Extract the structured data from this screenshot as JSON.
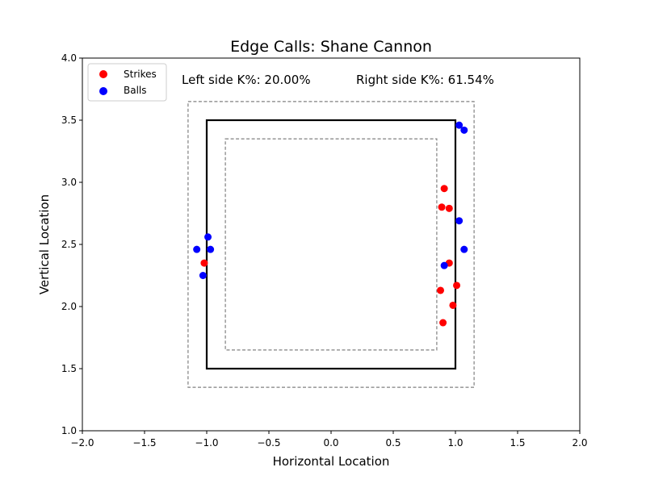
{
  "chart_data": {
    "type": "scatter",
    "title": "Edge Calls: Shane Cannon",
    "xlabel": "Horizontal Location",
    "ylabel": "Vertical Location",
    "xlim": [
      -2.0,
      2.0
    ],
    "ylim": [
      1.0,
      4.0
    ],
    "xticks": [
      "−2.0",
      "−1.5",
      "−1.0",
      "−0.5",
      "0.0",
      "0.5",
      "1.0",
      "1.5",
      "2.0"
    ],
    "yticks": [
      "1.0",
      "1.5",
      "2.0",
      "2.5",
      "3.0",
      "3.5",
      "4.0"
    ],
    "grid": false,
    "legend_position": "top-left",
    "annotations": {
      "left": "Left side K%: 20.00%",
      "right": "Right side K%: 61.54%"
    },
    "zones": {
      "strike_zone": {
        "x": [
          -1.0,
          1.0
        ],
        "y": [
          1.5,
          3.5
        ],
        "style": "solid"
      },
      "outer_edge": {
        "x": [
          -1.15,
          1.15
        ],
        "y": [
          1.35,
          3.65
        ],
        "style": "dashed"
      },
      "inner_edge": {
        "x": [
          -0.85,
          0.85
        ],
        "y": [
          1.65,
          3.35
        ],
        "style": "dashed"
      }
    },
    "series": [
      {
        "name": "Strikes",
        "color": "#ff0000",
        "points": [
          {
            "x": -1.02,
            "y": 2.35
          },
          {
            "x": 0.91,
            "y": 2.95
          },
          {
            "x": 0.89,
            "y": 2.8
          },
          {
            "x": 0.95,
            "y": 2.79
          },
          {
            "x": 0.95,
            "y": 2.35
          },
          {
            "x": 0.88,
            "y": 2.13
          },
          {
            "x": 1.01,
            "y": 2.17
          },
          {
            "x": 0.98,
            "y": 2.01
          },
          {
            "x": 0.9,
            "y": 1.87
          }
        ]
      },
      {
        "name": "Balls",
        "color": "#0000ff",
        "points": [
          {
            "x": -0.99,
            "y": 2.56
          },
          {
            "x": -1.08,
            "y": 2.46
          },
          {
            "x": -0.97,
            "y": 2.46
          },
          {
            "x": -1.03,
            "y": 2.25
          },
          {
            "x": 1.03,
            "y": 3.46
          },
          {
            "x": 1.07,
            "y": 3.42
          },
          {
            "x": 1.03,
            "y": 2.69
          },
          {
            "x": 1.07,
            "y": 2.46
          },
          {
            "x": 0.91,
            "y": 2.33
          }
        ]
      }
    ]
  }
}
